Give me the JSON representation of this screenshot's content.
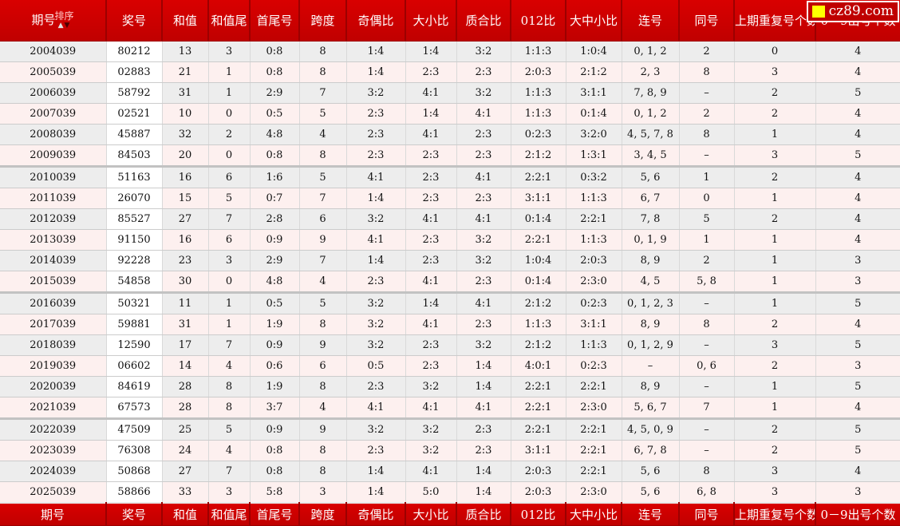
{
  "logo": {
    "text": "cz89.com"
  },
  "table": {
    "sort_label": "排序",
    "sort_arrows": {
      "up": "▲",
      "down": "▼"
    },
    "column_keys": [
      "qihao",
      "jianghao",
      "hezhi",
      "hezhiwei",
      "shouweihao",
      "kuadu",
      "jioubi",
      "daxiaobi",
      "zhihebi",
      "bi012",
      "dazhongxiaobi",
      "lianhao",
      "tonghao",
      "shangqichongfu",
      "chuhao09"
    ],
    "columns": [
      "期号",
      "奖号",
      "和值",
      "和值尾",
      "首尾号",
      "跨度",
      "奇偶比",
      "大小比",
      "质合比",
      "012比",
      "大中小比",
      "连号",
      "同号",
      "上期重复号个数",
      "0－9出号个数"
    ],
    "group_size": 6,
    "colors": {
      "header_red": "#cc0000",
      "row_gray": "#ededed",
      "row_pink": "#fdf0ef",
      "prize_col_white": "#ffffff",
      "logo_yellow": "#ffff00"
    },
    "rows": [
      [
        "2004039",
        "80212",
        "13",
        "3",
        "0:8",
        "8",
        "1:4",
        "1:4",
        "3:2",
        "1:1:3",
        "1:0:4",
        "0, 1, 2",
        "2",
        "0",
        "4"
      ],
      [
        "2005039",
        "02883",
        "21",
        "1",
        "0:8",
        "8",
        "1:4",
        "2:3",
        "2:3",
        "2:0:3",
        "2:1:2",
        "2, 3",
        "8",
        "3",
        "4"
      ],
      [
        "2006039",
        "58792",
        "31",
        "1",
        "2:9",
        "7",
        "3:2",
        "4:1",
        "3:2",
        "1:1:3",
        "3:1:1",
        "7, 8, 9",
        "–",
        "2",
        "5"
      ],
      [
        "2007039",
        "02521",
        "10",
        "0",
        "0:5",
        "5",
        "2:3",
        "1:4",
        "4:1",
        "1:1:3",
        "0:1:4",
        "0, 1, 2",
        "2",
        "2",
        "4"
      ],
      [
        "2008039",
        "45887",
        "32",
        "2",
        "4:8",
        "4",
        "2:3",
        "4:1",
        "2:3",
        "0:2:3",
        "3:2:0",
        "4, 5, 7, 8",
        "8",
        "1",
        "4"
      ],
      [
        "2009039",
        "84503",
        "20",
        "0",
        "0:8",
        "8",
        "2:3",
        "2:3",
        "2:3",
        "2:1:2",
        "1:3:1",
        "3, 4, 5",
        "–",
        "3",
        "5"
      ],
      [
        "2010039",
        "51163",
        "16",
        "6",
        "1:6",
        "5",
        "4:1",
        "2:3",
        "4:1",
        "2:2:1",
        "0:3:2",
        "5, 6",
        "1",
        "2",
        "4"
      ],
      [
        "2011039",
        "26070",
        "15",
        "5",
        "0:7",
        "7",
        "1:4",
        "2:3",
        "2:3",
        "3:1:1",
        "1:1:3",
        "6, 7",
        "0",
        "1",
        "4"
      ],
      [
        "2012039",
        "85527",
        "27",
        "7",
        "2:8",
        "6",
        "3:2",
        "4:1",
        "4:1",
        "0:1:4",
        "2:2:1",
        "7, 8",
        "5",
        "2",
        "4"
      ],
      [
        "2013039",
        "91150",
        "16",
        "6",
        "0:9",
        "9",
        "4:1",
        "2:3",
        "3:2",
        "2:2:1",
        "1:1:3",
        "0, 1, 9",
        "1",
        "1",
        "4"
      ],
      [
        "2014039",
        "92228",
        "23",
        "3",
        "2:9",
        "7",
        "1:4",
        "2:3",
        "3:2",
        "1:0:4",
        "2:0:3",
        "8, 9",
        "2",
        "1",
        "3"
      ],
      [
        "2015039",
        "54858",
        "30",
        "0",
        "4:8",
        "4",
        "2:3",
        "4:1",
        "2:3",
        "0:1:4",
        "2:3:0",
        "4, 5",
        "5, 8",
        "1",
        "3"
      ],
      [
        "2016039",
        "50321",
        "11",
        "1",
        "0:5",
        "5",
        "3:2",
        "1:4",
        "4:1",
        "2:1:2",
        "0:2:3",
        "0, 1, 2, 3",
        "–",
        "1",
        "5"
      ],
      [
        "2017039",
        "59881",
        "31",
        "1",
        "1:9",
        "8",
        "3:2",
        "4:1",
        "2:3",
        "1:1:3",
        "3:1:1",
        "8, 9",
        "8",
        "2",
        "4"
      ],
      [
        "2018039",
        "12590",
        "17",
        "7",
        "0:9",
        "9",
        "3:2",
        "2:3",
        "3:2",
        "2:1:2",
        "1:1:3",
        "0, 1, 2, 9",
        "–",
        "3",
        "5"
      ],
      [
        "2019039",
        "06602",
        "14",
        "4",
        "0:6",
        "6",
        "0:5",
        "2:3",
        "1:4",
        "4:0:1",
        "0:2:3",
        "–",
        "0, 6",
        "2",
        "3"
      ],
      [
        "2020039",
        "84619",
        "28",
        "8",
        "1:9",
        "8",
        "2:3",
        "3:2",
        "1:4",
        "2:2:1",
        "2:2:1",
        "8, 9",
        "–",
        "1",
        "5"
      ],
      [
        "2021039",
        "67573",
        "28",
        "8",
        "3:7",
        "4",
        "4:1",
        "4:1",
        "4:1",
        "2:2:1",
        "2:3:0",
        "5, 6, 7",
        "7",
        "1",
        "4"
      ],
      [
        "2022039",
        "47509",
        "25",
        "5",
        "0:9",
        "9",
        "3:2",
        "3:2",
        "2:3",
        "2:2:1",
        "2:2:1",
        "4, 5, 0, 9",
        "–",
        "2",
        "5"
      ],
      [
        "2023039",
        "76308",
        "24",
        "4",
        "0:8",
        "8",
        "2:3",
        "3:2",
        "2:3",
        "3:1:1",
        "2:2:1",
        "6, 7, 8",
        "–",
        "2",
        "5"
      ],
      [
        "2024039",
        "50868",
        "27",
        "7",
        "0:8",
        "8",
        "1:4",
        "4:1",
        "1:4",
        "2:0:3",
        "2:2:1",
        "5, 6",
        "8",
        "3",
        "4"
      ],
      [
        "2025039",
        "58866",
        "33",
        "3",
        "5:8",
        "3",
        "1:4",
        "5:0",
        "1:4",
        "2:0:3",
        "2:3:0",
        "5, 6",
        "6, 8",
        "3",
        "3"
      ]
    ]
  }
}
